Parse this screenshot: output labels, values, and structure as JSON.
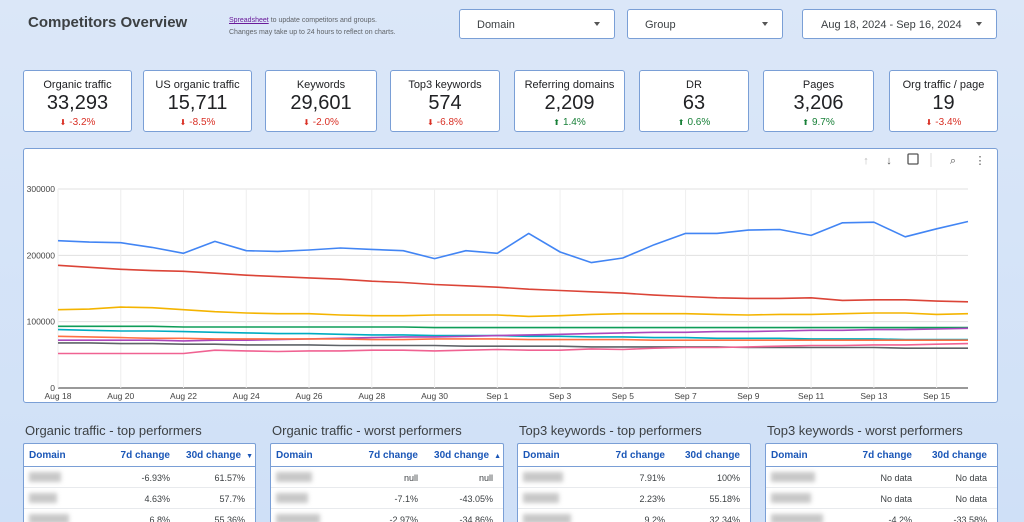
{
  "header": {
    "title": "Competitors Overview",
    "note_link": "Spreadsheet",
    "note_text": "to update competitors and groups.",
    "note_line2": "Changes may take up to 24 hours to reflect on charts."
  },
  "filters": [
    "Domain",
    "Group",
    "Aug 18, 2024 - Sep 16, 2024"
  ],
  "kpis": [
    {
      "label": "Organic traffic",
      "value": "33,293",
      "change": "-3.2%"
    },
    {
      "label": "US organic traffic",
      "value": "15,711",
      "change": "-8.5%"
    },
    {
      "label": "Keywords",
      "value": "29,601",
      "change": "-2.0%"
    },
    {
      "label": "Top3 keywords",
      "value": "574",
      "change": "-6.8%"
    },
    {
      "label": "Referring domains",
      "value": "2,209",
      "change": "1.4%"
    },
    {
      "label": "DR",
      "value": "63",
      "change": "0.6%"
    },
    {
      "label": "Pages",
      "value": "3,206",
      "change": "9.7%"
    },
    {
      "label": "Org traffic / page",
      "value": "19",
      "change": "-3.4%"
    }
  ],
  "chart_data": {
    "type": "line",
    "categories": [
      "Aug 18",
      null,
      "Aug 20",
      null,
      "Aug 22",
      null,
      "Aug 24",
      null,
      "Aug 26",
      null,
      "Aug 28",
      null,
      "Aug 30",
      null,
      "Sep 1",
      null,
      "Sep 3",
      null,
      "Sep 5",
      null,
      "Sep 7",
      null,
      "Sep 9",
      null,
      "Sep 11",
      null,
      "Sep 13",
      null,
      "Sep 15",
      null
    ],
    "series": [
      {
        "color": "#4285f4",
        "values": [
          222000,
          220000,
          219000,
          212000,
          203000,
          221000,
          207000,
          206000,
          208000,
          211000,
          209000,
          207000,
          195000,
          207000,
          203000,
          233000,
          205000,
          189000,
          196000,
          216000,
          233000,
          233000,
          238000,
          239000,
          230000,
          249000,
          250000,
          228000,
          240000,
          251000
        ]
      },
      {
        "color": "#db4437",
        "values": [
          185000,
          182000,
          179000,
          177000,
          176000,
          173000,
          170000,
          168000,
          166000,
          164000,
          161000,
          159000,
          156000,
          154000,
          152000,
          149000,
          147000,
          145000,
          143000,
          140000,
          138000,
          136000,
          135000,
          135000,
          136000,
          132000,
          133000,
          133000,
          131000,
          130000
        ]
      },
      {
        "color": "#f4b400",
        "values": [
          118000,
          119000,
          122000,
          121000,
          118000,
          115000,
          113000,
          112000,
          112000,
          110000,
          109000,
          109000,
          110000,
          110000,
          110000,
          108000,
          109000,
          111000,
          112000,
          112000,
          112000,
          111000,
          110000,
          111000,
          111000,
          112000,
          113000,
          113000,
          111000,
          112000
        ]
      },
      {
        "color": "#0f9d58",
        "values": [
          93000,
          93000,
          93000,
          93000,
          92000,
          92000,
          92000,
          92000,
          92000,
          92000,
          92000,
          92000,
          91000,
          91000,
          91000,
          91000,
          91000,
          91000,
          91000,
          91000,
          91000,
          91000,
          91000,
          91000,
          91000,
          91000,
          91000,
          91000,
          91000,
          91000
        ]
      },
      {
        "color": "#00acc1",
        "values": [
          88000,
          87000,
          86000,
          86000,
          85000,
          84000,
          83000,
          82000,
          82000,
          81000,
          80000,
          80000,
          79000,
          79000,
          79000,
          78000,
          78000,
          77000,
          77000,
          76000,
          76000,
          75000,
          75000,
          75000,
          74000,
          74000,
          74000,
          73000,
          73000,
          73000
        ]
      },
      {
        "color": "#ab47bc",
        "values": [
          72000,
          72000,
          72000,
          72000,
          71000,
          72000,
          72000,
          73000,
          74000,
          75000,
          76000,
          77000,
          77000,
          78000,
          79000,
          80000,
          81000,
          82000,
          83000,
          84000,
          84000,
          85000,
          85000,
          86000,
          87000,
          87000,
          88000,
          88000,
          89000,
          90000
        ]
      },
      {
        "color": "#ff7043",
        "values": [
          78000,
          77000,
          76000,
          75000,
          75000,
          74000,
          74000,
          74000,
          74000,
          74000,
          73000,
          73000,
          74000,
          74000,
          74000,
          73000,
          73000,
          73000,
          73000,
          72000,
          72000,
          72000,
          72000,
          72000,
          72000,
          72000,
          72000,
          72000,
          72000,
          72000
        ]
      },
      {
        "color": "#5f6368",
        "values": [
          68000,
          68000,
          67000,
          67000,
          66000,
          66000,
          65000,
          65000,
          65000,
          64000,
          64000,
          64000,
          64000,
          63000,
          63000,
          63000,
          63000,
          62000,
          62000,
          62000,
          62000,
          62000,
          61000,
          61000,
          61000,
          61000,
          61000,
          60000,
          60000,
          60000
        ]
      },
      {
        "color": "#f06292",
        "values": [
          52000,
          52000,
          52000,
          52000,
          52000,
          57000,
          56000,
          55000,
          56000,
          56000,
          57000,
          57000,
          56000,
          57000,
          58000,
          57000,
          57000,
          59000,
          58000,
          60000,
          61000,
          61000,
          62000,
          63000,
          64000,
          64000,
          65000,
          65000,
          66000,
          67000
        ]
      }
    ],
    "ylim": [
      0,
      300000
    ],
    "yticks": [
      0,
      100000,
      200000,
      300000
    ],
    "grid": true
  },
  "tables": [
    {
      "title": "Organic traffic - top performers",
      "headers": [
        "Domain",
        "7d change",
        "30d change"
      ],
      "sort_column": 2,
      "sort": "desc",
      "rows": [
        [
          "-6.93%",
          "61.57%"
        ],
        [
          "4.63%",
          "57.7%"
        ],
        [
          "6.8%",
          "55.36%"
        ]
      ]
    },
    {
      "title": "Organic traffic - worst performers",
      "headers": [
        "Domain",
        "7d change",
        "30d change"
      ],
      "sort_column": 2,
      "sort": "asc",
      "rows": [
        [
          "null",
          "null"
        ],
        [
          "-7.1%",
          "-43.05%"
        ],
        [
          "-2.97%",
          "-34.86%"
        ]
      ]
    },
    {
      "title": "Top3 keywords - top performers",
      "headers": [
        "Domain",
        "7d change",
        "30d change"
      ],
      "rows": [
        [
          "7.91%",
          "100%"
        ],
        [
          "2.23%",
          "55.18%"
        ],
        [
          "9.2%",
          "32.34%"
        ]
      ]
    },
    {
      "title": "Top3 keywords - worst performers",
      "headers": [
        "Domain",
        "7d change",
        "30d change"
      ],
      "rows": [
        [
          "No data",
          "No data"
        ],
        [
          "No data",
          "No data"
        ],
        [
          "-4.2%",
          "-33.58%"
        ]
      ]
    }
  ]
}
